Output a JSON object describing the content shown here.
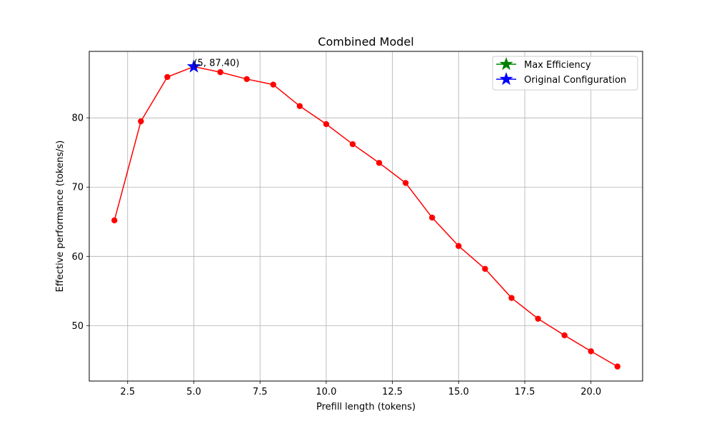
{
  "chart_data": {
    "type": "line",
    "title": "Combined Model",
    "xlabel": "Prefill length (tokens)",
    "ylabel": "Effective performance (tokens/s)",
    "xlim": [
      1.05,
      21.95
    ],
    "ylim": [
      42.0,
      89.6
    ],
    "grid": true,
    "x_ticks": [
      2.5,
      5.0,
      7.5,
      10.0,
      12.5,
      15.0,
      17.5,
      20.0
    ],
    "x_tick_labels": [
      "2.5",
      "5.0",
      "7.5",
      "10.0",
      "12.5",
      "15.0",
      "17.5",
      "20.0"
    ],
    "y_ticks": [
      50,
      60,
      70,
      80
    ],
    "y_tick_labels": [
      "50",
      "60",
      "70",
      "80"
    ],
    "series": [
      {
        "name": "Effective performance",
        "color": "#ff0000",
        "marker": "circle",
        "x": [
          2,
          3,
          4,
          5,
          6,
          7,
          8,
          9,
          10,
          11,
          12,
          13,
          14,
          15,
          16,
          17,
          18,
          19,
          20,
          21
        ],
        "y": [
          65.2,
          79.5,
          85.9,
          87.4,
          86.6,
          85.6,
          84.8,
          81.7,
          79.1,
          76.2,
          73.5,
          70.6,
          65.6,
          61.5,
          58.2,
          54.0,
          51.0,
          48.6,
          46.3,
          44.1
        ]
      }
    ],
    "special_points": [
      {
        "name": "Max Efficiency",
        "x": 5,
        "y": 87.4,
        "color": "#008000",
        "marker": "star"
      },
      {
        "name": "Original Configuration",
        "x": 5,
        "y": 87.4,
        "color": "#0000ff",
        "marker": "star"
      }
    ],
    "annotation": {
      "text": "(5, 87.40)",
      "x": 5,
      "y": 87.4
    },
    "legend": {
      "position": "top-right",
      "entries": [
        {
          "label": "Max Efficiency",
          "color": "#008000",
          "marker": "star"
        },
        {
          "label": "Original Configuration",
          "color": "#0000ff",
          "marker": "star"
        }
      ]
    }
  }
}
